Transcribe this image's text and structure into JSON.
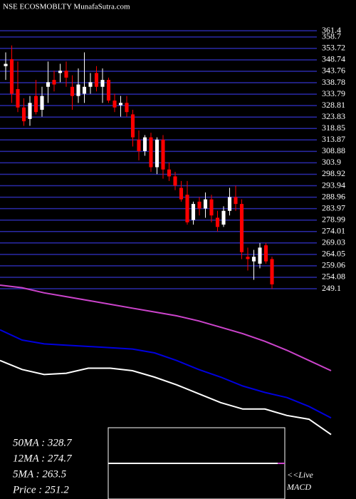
{
  "chart_data": {
    "type": "candlestick",
    "title": "NSE ECOSMOBLTY MunafaSutra.com",
    "ylim": [
      246,
      363
    ],
    "yticks": [
      361.4,
      358.7,
      353.72,
      348.74,
      343.76,
      338.78,
      333.79,
      328.81,
      323.83,
      318.85,
      313.87,
      308.88,
      303.9,
      298.92,
      293.94,
      288.96,
      283.97,
      278.99,
      274.01,
      269.03,
      264.05,
      259.06,
      254.08,
      249.1
    ],
    "grid": true,
    "up_color": "#ffffff",
    "down_color": "#ff0000",
    "ohlc": [
      [
        346,
        352,
        340,
        347
      ],
      [
        349,
        355,
        330,
        334
      ],
      [
        336,
        348,
        326,
        328
      ],
      [
        328,
        332,
        320,
        322
      ],
      [
        323,
        333,
        320,
        330
      ],
      [
        333,
        340,
        325,
        326
      ],
      [
        327,
        337,
        324,
        333
      ],
      [
        337,
        348,
        330,
        339
      ],
      [
        340,
        344,
        335,
        338
      ],
      [
        343,
        347,
        339,
        344
      ],
      [
        344,
        348,
        337,
        341
      ],
      [
        337,
        342,
        327,
        333
      ],
      [
        333,
        345,
        330,
        338
      ],
      [
        334,
        352,
        330,
        337
      ],
      [
        337,
        343,
        334,
        339
      ],
      [
        343,
        346,
        335,
        337
      ],
      [
        337,
        345,
        330,
        340
      ],
      [
        340,
        341,
        330,
        331
      ],
      [
        331,
        334,
        326,
        328
      ],
      [
        329,
        333,
        324,
        330
      ],
      [
        330,
        333,
        324,
        326
      ],
      [
        325,
        327,
        311,
        315
      ],
      [
        314,
        318,
        305,
        309
      ],
      [
        309,
        316,
        307,
        315
      ],
      [
        315,
        317,
        300,
        302
      ],
      [
        302,
        315,
        299,
        314
      ],
      [
        314,
        316,
        297,
        301
      ],
      [
        301,
        304,
        296,
        298
      ],
      [
        298,
        300,
        292,
        294
      ],
      [
        293,
        296,
        287,
        288
      ],
      [
        290,
        296,
        277,
        278
      ],
      [
        279,
        287,
        277,
        286
      ],
      [
        287,
        289,
        281,
        284
      ],
      [
        284,
        291,
        280,
        288
      ],
      [
        288,
        290,
        278,
        281
      ],
      [
        280,
        283,
        274,
        276
      ],
      [
        277,
        285,
        276,
        283
      ],
      [
        283,
        293,
        281,
        289
      ],
      [
        289,
        294,
        283,
        286
      ],
      [
        286,
        288,
        262,
        265
      ],
      [
        263,
        267,
        257,
        262
      ],
      [
        261,
        266,
        253,
        263
      ],
      [
        260,
        269,
        258,
        267
      ],
      [
        268,
        269,
        260,
        261
      ],
      [
        262,
        263,
        249,
        251
      ]
    ],
    "ma_ylim": [
      240,
      360
    ],
    "ma_series": [
      {
        "name": "50MA",
        "color": "#cc44cc",
        "values": [
          360,
          358,
          354,
          351,
          348,
          345,
          342,
          339,
          336,
          332,
          327,
          322,
          316,
          309,
          301,
          293
        ]
      },
      {
        "name": "12MA",
        "color": "#0000dd",
        "values": [
          325,
          317,
          314,
          313,
          312,
          311,
          310,
          307,
          301,
          294,
          288,
          281,
          276,
          272,
          265,
          256
        ]
      },
      {
        "name": "5MA",
        "color": "#ffffff",
        "values": [
          301,
          294,
          290,
          291,
          295,
          295,
          293,
          288,
          282,
          275,
          268,
          263,
          263,
          258,
          255,
          243
        ]
      }
    ],
    "legend": [
      "50MA : 328.7",
      "12MA : 274.7",
      "5MA : 263.5",
      "Price   : 251.2"
    ],
    "live_label": "<<Live",
    "macd_label": "MACD"
  }
}
